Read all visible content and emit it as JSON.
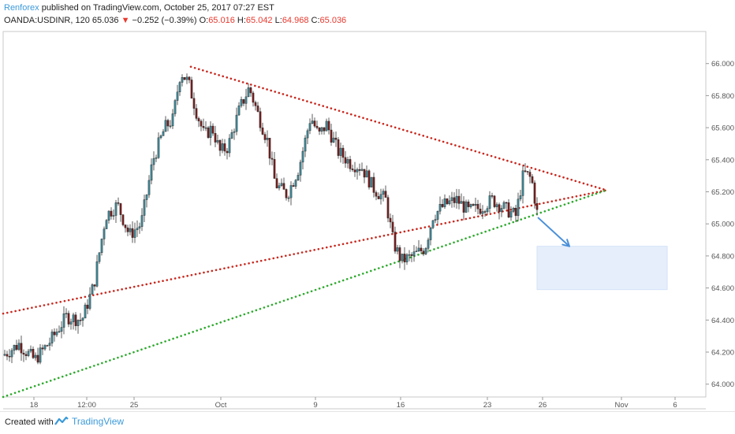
{
  "header": {
    "author": "Renforex",
    "published_text": "published on TradingView.com, October 25, 2017 07:27 EST"
  },
  "symbol_bar": {
    "symbol": "OANDA:USDINR, 120",
    "last": "65.036",
    "change": "−0.252 (−0.39%)",
    "open_label": "O:",
    "open": "65.016",
    "high_label": "H:",
    "high": "65.042",
    "low_label": "L:",
    "low": "64.968",
    "close_label": "C:",
    "close": "65.036"
  },
  "footer": {
    "created_with": "Created with",
    "brand": "TradingView"
  },
  "colors": {
    "accent": "#3b9ad9",
    "down": "#e8392e",
    "candle_up": "#3f8a9a",
    "candle_down": "#7a1d1d",
    "upper_trendline": "#c8281e",
    "lower_trendline": "#2eaa2e",
    "target_zone": "#e6eefb",
    "arrow": "#4a90d9"
  },
  "chart_data": {
    "type": "candlestick",
    "title": "OANDA:USDINR, 120",
    "ylim": [
      63.92,
      66.2
    ],
    "y_ticks": [
      "64.000",
      "64.200",
      "64.400",
      "64.600",
      "64.800",
      "65.000",
      "65.200",
      "65.400",
      "65.600",
      "65.800",
      "66.000"
    ],
    "x_ticks": [
      "18",
      "12:00",
      "25",
      "Oct",
      "9",
      "16",
      "23",
      "26",
      "Nov",
      "6"
    ],
    "series": [
      {
        "path_close": [
          [
            0,
            64.18
          ],
          [
            20,
            64.25
          ],
          [
            40,
            64.15
          ],
          [
            60,
            64.27
          ],
          [
            80,
            64.42
          ],
          [
            100,
            64.4
          ],
          [
            115,
            64.62
          ],
          [
            130,
            65.05
          ],
          [
            145,
            65.12
          ],
          [
            160,
            64.93
          ],
          [
            175,
            65.0
          ],
          [
            190,
            65.4
          ],
          [
            205,
            65.6
          ],
          [
            215,
            65.65
          ],
          [
            225,
            65.95
          ],
          [
            235,
            65.88
          ],
          [
            245,
            65.7
          ],
          [
            255,
            65.55
          ],
          [
            265,
            65.6
          ],
          [
            275,
            65.45
          ],
          [
            285,
            65.48
          ],
          [
            300,
            65.72
          ],
          [
            312,
            65.85
          ],
          [
            322,
            65.7
          ],
          [
            335,
            65.52
          ],
          [
            345,
            65.25
          ],
          [
            360,
            65.18
          ],
          [
            375,
            65.35
          ],
          [
            390,
            65.67
          ],
          [
            400,
            65.55
          ],
          [
            410,
            65.62
          ],
          [
            425,
            65.45
          ],
          [
            440,
            65.38
          ],
          [
            455,
            65.35
          ],
          [
            470,
            65.22
          ],
          [
            485,
            65.15
          ],
          [
            495,
            64.88
          ],
          [
            505,
            64.77
          ],
          [
            520,
            64.8
          ],
          [
            535,
            64.85
          ],
          [
            545,
            65.05
          ],
          [
            560,
            65.12
          ],
          [
            575,
            65.15
          ],
          [
            590,
            65.08
          ],
          [
            605,
            65.1
          ],
          [
            620,
            65.15
          ],
          [
            635,
            65.1
          ],
          [
            650,
            65.05
          ],
          [
            660,
            65.32
          ],
          [
            670,
            65.28
          ],
          [
            678,
            65.04
          ]
        ]
      }
    ],
    "trendlines": [
      {
        "name": "upper",
        "from": [
          238,
          65.98
        ],
        "to": [
          765,
          65.21
        ]
      },
      {
        "name": "lower_upper",
        "from": [
          0,
          64.44
        ],
        "to": [
          765,
          65.21
        ]
      },
      {
        "name": "lower",
        "from": [
          0,
          63.92
        ],
        "to": [
          765,
          65.21
        ]
      }
    ],
    "projection_arrow": {
      "from": [
        678,
        65.04
      ],
      "to": [
        718,
        64.86
      ]
    },
    "target_zone": {
      "x_from": 677,
      "x_to": 842,
      "y_from": 64.59,
      "y_to": 64.86
    }
  }
}
